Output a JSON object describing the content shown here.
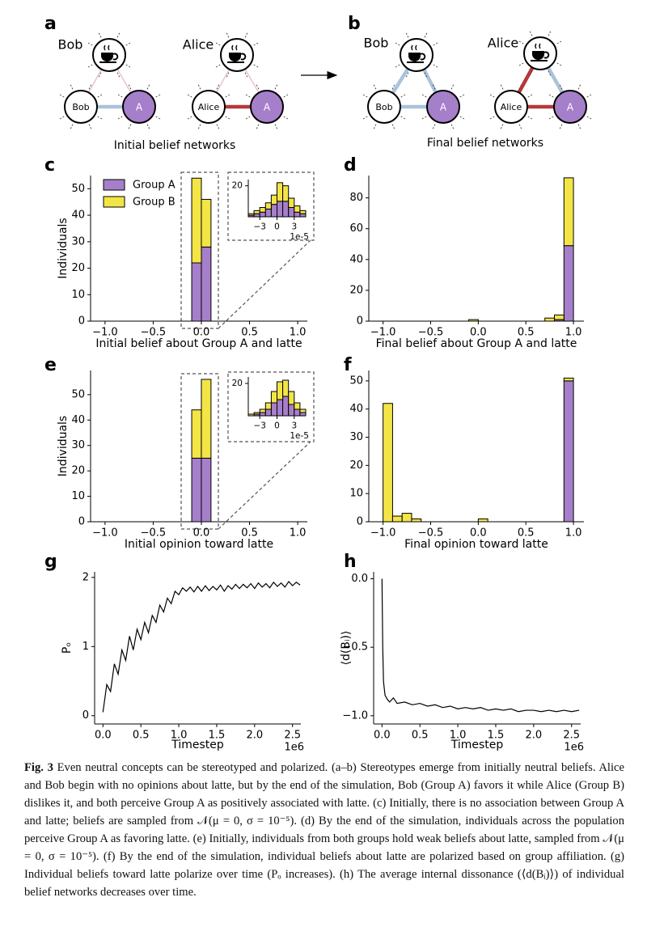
{
  "panel_labels": [
    "a",
    "b",
    "c",
    "d",
    "e",
    "f",
    "g",
    "h"
  ],
  "diagrams": [
    {
      "people": [
        {
          "name": "Bob",
          "node": "Bob",
          "group_node": "A"
        },
        {
          "name": "Alice",
          "node": "Alice",
          "group_node": "A"
        }
      ],
      "caption": "Initial belief networks"
    },
    {
      "people": [
        {
          "name": "Bob",
          "node": "Bob",
          "group_node": "A"
        },
        {
          "name": "Alice",
          "node": "Alice",
          "group_node": "A"
        }
      ],
      "caption": "Final belief networks"
    }
  ],
  "chart_data": [
    {
      "type": "histogram",
      "xlabel": "Initial belief about Group A and latte",
      "ylabel": "Individuals",
      "legend": "upper left",
      "bins": [
        -1.0,
        -0.9,
        -0.8,
        -0.7,
        -0.6,
        -0.5,
        -0.4,
        -0.3,
        -0.2,
        -0.1,
        0,
        0.1,
        0.2,
        0.3,
        0.4,
        0.5,
        0.6,
        0.7,
        0.8,
        0.9,
        1.0
      ],
      "series": [
        {
          "name": "Group A",
          "color": "#a67fca",
          "values": [
            0,
            0,
            0,
            0,
            0,
            0,
            0,
            0,
            0,
            22,
            28,
            0,
            0,
            0,
            0,
            0,
            0,
            0,
            0,
            0
          ]
        },
        {
          "name": "Group B",
          "color": "#f3e546",
          "values": [
            0,
            0,
            0,
            0,
            0,
            0,
            0,
            0,
            0,
            32,
            18,
            0,
            0,
            0,
            0,
            0,
            0,
            0,
            0,
            0
          ]
        }
      ],
      "xlim": [
        -1.15,
        1.1
      ],
      "ylim": [
        0,
        55
      ],
      "xticks": [
        {
          "value": -1,
          "label": "−1.0"
        },
        {
          "value": -0.5,
          "label": "−0.5"
        },
        {
          "value": 0,
          "label": "0.0"
        },
        0.5,
        {
          "value": 1,
          "label": "1.0"
        }
      ],
      "yticks": [
        0,
        10,
        20,
        30,
        40,
        50
      ]
    },
    {
      "type": "histogram",
      "bins": [
        -5,
        -4,
        -3,
        -2,
        -1,
        0,
        1,
        2,
        3,
        4,
        5
      ],
      "series": [
        {
          "color": "#a67fca",
          "values": [
            1,
            2,
            3,
            5,
            8,
            10,
            10,
            6,
            3,
            2
          ]
        },
        {
          "color": "#f3e546",
          "values": [
            1,
            2,
            3,
            4,
            6,
            12,
            10,
            6,
            4,
            2
          ]
        }
      ],
      "xlim": [
        -5,
        5
      ],
      "ylim": [
        0,
        24
      ],
      "xticks": [
        {
          "value": -3,
          "label": "−3"
        },
        0,
        3
      ],
      "yticks": [
        20
      ],
      "x_offset_label": "1e-5"
    },
    {
      "type": "histogram",
      "xlabel": "Final belief about Group A and latte",
      "bins": [
        -1.0,
        -0.9,
        -0.8,
        -0.7,
        -0.6,
        -0.5,
        -0.4,
        -0.3,
        -0.2,
        -0.1,
        0,
        0.1,
        0.2,
        0.3,
        0.4,
        0.5,
        0.6,
        0.7,
        0.8,
        0.9,
        1.0
      ],
      "series": [
        {
          "color": "#a67fca",
          "values": [
            0,
            0,
            0,
            0,
            0,
            0,
            0,
            0,
            0,
            0,
            0,
            0,
            0,
            0,
            0,
            0,
            0,
            0,
            1,
            49
          ]
        },
        {
          "color": "#f3e546",
          "values": [
            0,
            0,
            0,
            0,
            0,
            0,
            0,
            0,
            0,
            1,
            0,
            0,
            0,
            0,
            0,
            0,
            0,
            2,
            3,
            44
          ]
        }
      ],
      "xlim": [
        -1.15,
        1.11
      ],
      "ylim": [
        0,
        94.5
      ],
      "xticks": [
        {
          "value": -1,
          "label": "−1.0"
        },
        {
          "value": -0.5,
          "label": "−0.5"
        },
        {
          "value": 0,
          "label": "0.0"
        },
        0.5,
        {
          "value": 1,
          "label": "1.0"
        }
      ],
      "yticks": [
        0,
        20,
        40,
        60,
        80
      ]
    },
    {
      "type": "histogram",
      "xlabel": "Initial opinion toward latte",
      "ylabel": "Individuals",
      "bins": [
        -1.0,
        -0.9,
        -0.8,
        -0.7,
        -0.6,
        -0.5,
        -0.4,
        -0.3,
        -0.2,
        -0.1,
        0,
        0.1,
        0.2,
        0.3,
        0.4,
        0.5,
        0.6,
        0.7,
        0.8,
        0.9,
        1.0
      ],
      "series": [
        {
          "color": "#a67fca",
          "values": [
            0,
            0,
            0,
            0,
            0,
            0,
            0,
            0,
            0,
            25,
            25,
            0,
            0,
            0,
            0,
            0,
            0,
            0,
            0,
            0
          ]
        },
        {
          "color": "#f3e546",
          "values": [
            0,
            0,
            0,
            0,
            0,
            0,
            0,
            0,
            0,
            19,
            31,
            0,
            0,
            0,
            0,
            0,
            0,
            0,
            0,
            0
          ]
        }
      ],
      "xlim": [
        -1.15,
        1.1
      ],
      "ylim": [
        0,
        59.5
      ],
      "xticks": [
        {
          "value": -1,
          "label": "−1.0"
        },
        {
          "value": -0.5,
          "label": "−0.5"
        },
        {
          "value": 0,
          "label": "0.0"
        },
        0.5,
        {
          "value": 1,
          "label": "1.0"
        }
      ],
      "yticks": [
        0,
        10,
        20,
        30,
        40,
        50
      ]
    },
    {
      "type": "histogram",
      "bins": [
        -5,
        -4,
        -3,
        -2,
        -1,
        0,
        1,
        2,
        3,
        4,
        5
      ],
      "series": [
        {
          "color": "#a67fca",
          "values": [
            0,
            1,
            2,
            4,
            8,
            10,
            12,
            7,
            4,
            2
          ]
        },
        {
          "color": "#f3e546",
          "values": [
            1,
            1,
            2,
            4,
            7,
            11,
            10,
            8,
            4,
            2
          ]
        }
      ],
      "xlim": [
        -5,
        5
      ],
      "ylim": [
        0,
        24
      ],
      "xticks": [
        {
          "value": -3,
          "label": "−3"
        },
        0,
        3
      ],
      "yticks": [
        20
      ],
      "x_offset_label": "1e-5"
    },
    {
      "type": "histogram",
      "xlabel": "Final opinion toward latte",
      "bins": [
        -1.0,
        -0.9,
        -0.8,
        -0.7,
        -0.6,
        -0.5,
        -0.4,
        -0.3,
        -0.2,
        -0.1,
        0,
        0.1,
        0.2,
        0.3,
        0.4,
        0.5,
        0.6,
        0.7,
        0.8,
        0.9,
        1.0
      ],
      "series": [
        {
          "color": "#a67fca",
          "values": [
            0,
            0,
            0,
            0,
            0,
            0,
            0,
            0,
            0,
            0,
            0,
            0,
            0,
            0,
            0,
            0,
            0,
            0,
            0,
            50
          ]
        },
        {
          "color": "#f3e546",
          "values": [
            42,
            2,
            3,
            1,
            0,
            0,
            0,
            0,
            0,
            0,
            1,
            0,
            0,
            0,
            0,
            0,
            0,
            0,
            0,
            1
          ]
        }
      ],
      "xlim": [
        -1.15,
        1.11
      ],
      "ylim": [
        0,
        53.7
      ],
      "xticks": [
        {
          "value": -1,
          "label": "−1.0"
        },
        {
          "value": -0.5,
          "label": "−0.5"
        },
        {
          "value": 0,
          "label": "0.0"
        },
        0.5,
        {
          "value": 1,
          "label": "1.0"
        }
      ],
      "yticks": [
        0,
        10,
        20,
        30,
        40,
        50
      ]
    },
    {
      "type": "line",
      "xlabel": "Timestep",
      "ylabel": "Pₒ",
      "color": "#000000",
      "x_offset_label": "1e6",
      "x": [
        0,
        0.05,
        0.1,
        0.15,
        0.2,
        0.25,
        0.3,
        0.35,
        0.4,
        0.45,
        0.5,
        0.55,
        0.6,
        0.65,
        0.7,
        0.75,
        0.8,
        0.85,
        0.9,
        0.95,
        1.0,
        1.05,
        1.1,
        1.15,
        1.2,
        1.25,
        1.3,
        1.35,
        1.4,
        1.45,
        1.5,
        1.55,
        1.6,
        1.65,
        1.7,
        1.75,
        1.8,
        1.85,
        1.9,
        1.95,
        2.0,
        2.05,
        2.1,
        2.15,
        2.2,
        2.25,
        2.3,
        2.35,
        2.4,
        2.45,
        2.5,
        2.55,
        2.6
      ],
      "values": [
        0.05,
        0.45,
        0.35,
        0.75,
        0.6,
        0.95,
        0.8,
        1.15,
        0.95,
        1.25,
        1.1,
        1.35,
        1.2,
        1.45,
        1.35,
        1.6,
        1.5,
        1.7,
        1.62,
        1.8,
        1.75,
        1.85,
        1.8,
        1.86,
        1.79,
        1.87,
        1.8,
        1.88,
        1.81,
        1.87,
        1.82,
        1.89,
        1.8,
        1.88,
        1.83,
        1.9,
        1.84,
        1.9,
        1.85,
        1.91,
        1.84,
        1.92,
        1.86,
        1.91,
        1.85,
        1.93,
        1.87,
        1.92,
        1.86,
        1.94,
        1.88,
        1.93,
        1.89
      ],
      "xlim": [
        -0.11,
        2.61
      ],
      "ylim": [
        -0.12,
        2.08
      ],
      "xticks": [
        {
          "value": 0,
          "label": "0.0"
        },
        0.5,
        {
          "value": 1,
          "label": "1.0"
        },
        1.5,
        {
          "value": 2,
          "label": "2.0"
        },
        2.5
      ],
      "yticks": [
        0,
        1,
        2
      ]
    },
    {
      "type": "line",
      "xlabel": "Timestep",
      "ylabel": "⟨d(Bᵢ)⟩",
      "color": "#000000",
      "x_offset_label": "1e6",
      "x": [
        0,
        0.01,
        0.02,
        0.04,
        0.07,
        0.1,
        0.15,
        0.2,
        0.3,
        0.4,
        0.5,
        0.6,
        0.7,
        0.8,
        0.9,
        1.0,
        1.1,
        1.2,
        1.3,
        1.4,
        1.5,
        1.6,
        1.7,
        1.8,
        1.9,
        2.0,
        2.1,
        2.2,
        2.3,
        2.4,
        2.5,
        2.6
      ],
      "values": [
        0,
        -0.5,
        -0.75,
        -0.85,
        -0.88,
        -0.9,
        -0.87,
        -0.91,
        -0.9,
        -0.92,
        -0.91,
        -0.93,
        -0.92,
        -0.94,
        -0.93,
        -0.95,
        -0.94,
        -0.95,
        -0.94,
        -0.96,
        -0.95,
        -0.96,
        -0.95,
        -0.97,
        -0.96,
        -0.96,
        -0.97,
        -0.96,
        -0.97,
        -0.96,
        -0.97,
        -0.96
      ],
      "xlim": [
        -0.11,
        2.62
      ],
      "ylim": [
        -1.06,
        0.05
      ],
      "xticks": [
        {
          "value": 0,
          "label": "0.0"
        },
        0.5,
        {
          "value": 1,
          "label": "1.0"
        },
        1.5,
        {
          "value": 2,
          "label": "2.0"
        },
        2.5
      ],
      "yticks": [
        {
          "value": 0,
          "label": "0.0"
        },
        {
          "value": -0.5,
          "label": "−0.5"
        },
        {
          "value": -1,
          "label": "−1.0"
        }
      ]
    }
  ],
  "caption": {
    "label": "Fig. 3",
    "text": "Even neutral concepts can be stereotyped and polarized. (a–b) Stereotypes emerge from initially neutral beliefs. Alice and Bob begin with no opinions about latte, but by the end of the simulation, Bob (Group A) favors it while Alice (Group B) dislikes it, and both perceive Group A as positively associated with latte. (c) Initially, there is no association between Group A and latte; beliefs are sampled from 𝒩(μ = 0, σ = 10⁻⁵). (d) By the end of the simulation, individuals across the population perceive Group A as favoring latte. (e) Initially, individuals from both groups hold weak beliefs about latte, sampled from 𝒩(μ = 0, σ = 10⁻⁵). (f) By the end of the simulation, individual beliefs about latte are polarized based on group affiliation. (g) Individual beliefs toward latte polarize over time (Pₒ increases). (h) The average internal dissonance (⟨d(Bᵢ)⟩) of individual belief networks decreases over time."
  }
}
